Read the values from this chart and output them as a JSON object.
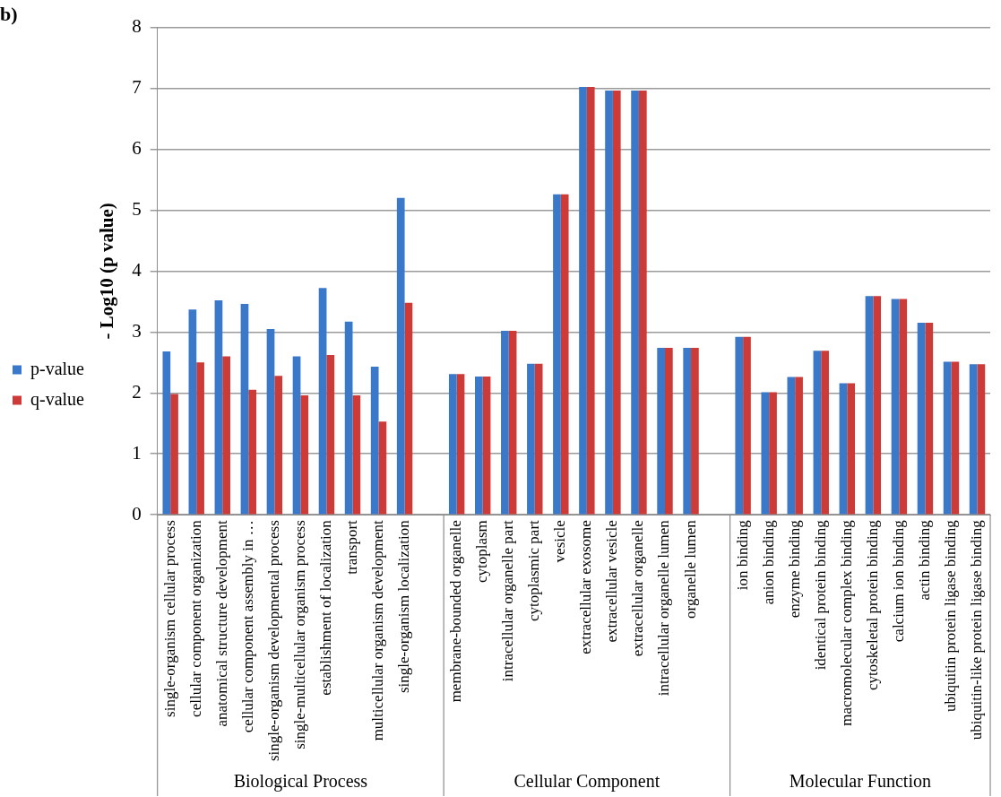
{
  "chart_data": {
    "type": "bar",
    "title": "b)",
    "ylabel": "- Log10 (p value)",
    "categories": [
      "single-organism cellular process",
      "cellular component organization",
      "anatomical structure development",
      "cellular component assembly in …",
      "single-organism developmental process",
      "single-multicellular organism process",
      "establishment of localization",
      "transport",
      "multicellular organism development",
      "single-organism localization",
      null,
      "membrane-bounded organelle",
      "cytoplasm",
      "intracellular organelle part",
      "cytoplasmic part",
      "vesicle",
      "extracellular exosome",
      "extracellular vesicle",
      "extracellular organelle",
      "intracellular organelle lumen",
      "organelle lumen",
      null,
      "ion binding",
      "anion binding",
      "enzyme binding",
      "identical protein binding",
      "macromolecular complex binding",
      "cytoskeletal protein binding",
      "calcium ion binding",
      "actin binding",
      "ubiquitin protein ligase binding",
      "ubiquitin-like protein ligase binding"
    ],
    "series": [
      {
        "name": "p-value",
        "color": "#3a78c9",
        "values": [
          2.68,
          3.37,
          3.52,
          3.46,
          3.05,
          2.6,
          3.72,
          3.17,
          2.43,
          5.2,
          null,
          2.31,
          2.27,
          3.02,
          2.48,
          5.26,
          7.02,
          6.96,
          6.96,
          2.74,
          2.74,
          null,
          2.92,
          2.01,
          2.26,
          2.69,
          2.16,
          3.59,
          3.54,
          3.15,
          2.51,
          2.47
        ]
      },
      {
        "name": "q-value",
        "color": "#cc3b37",
        "values": [
          1.98,
          2.5,
          2.6,
          2.05,
          2.28,
          1.96,
          2.62,
          1.96,
          1.53,
          3.48,
          null,
          2.31,
          2.27,
          3.02,
          2.48,
          5.26,
          7.02,
          6.96,
          6.96,
          2.74,
          2.74,
          null,
          2.92,
          2.01,
          2.26,
          2.69,
          2.16,
          3.59,
          3.54,
          3.15,
          2.51,
          2.47
        ]
      }
    ],
    "ylim": [
      0,
      8
    ],
    "yticks": [
      0,
      1,
      2,
      3,
      4,
      5,
      6,
      7,
      8
    ],
    "grid": "y",
    "legend": "left",
    "annotations": [
      "Biological Process",
      "Cellular Component",
      "Molecular Function"
    ]
  }
}
